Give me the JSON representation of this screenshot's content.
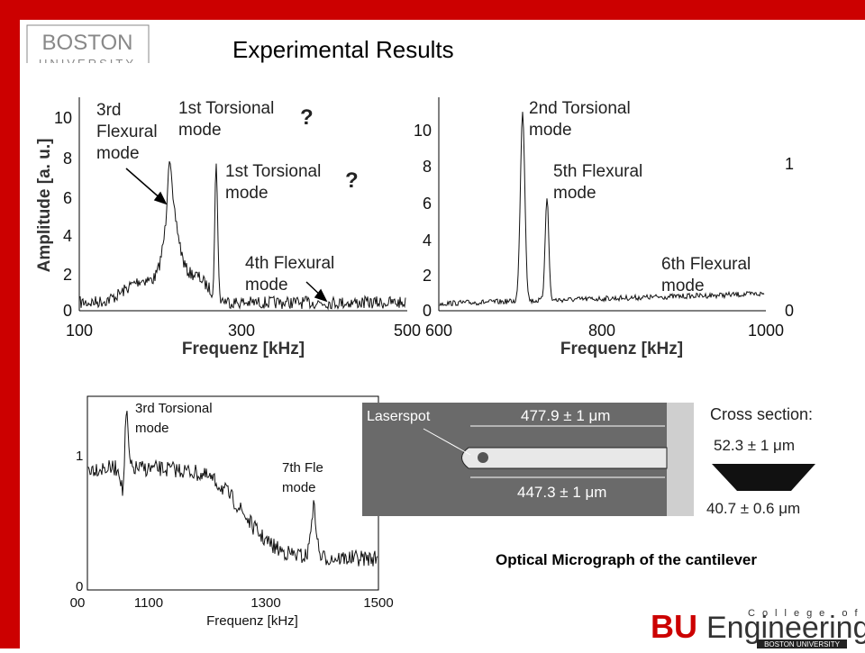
{
  "header": {
    "title": "Experimental Results",
    "logo": [
      "BOSTON",
      "UNIVERSITY"
    ]
  },
  "panels": [
    {
      "y_label": "Amplitude [a. u.]",
      "x_label": "Frequenz [kHz]",
      "xticks": [
        "100",
        "300",
        "500"
      ],
      "yticks": [
        "0",
        "2",
        "4",
        "6",
        "8",
        "10"
      ],
      "annotations": [
        [
          "3rd",
          "Flexural",
          "mode"
        ],
        [
          "1st Torsional",
          "mode"
        ],
        [
          "?"
        ],
        [
          "1st Torsional",
          "mode"
        ],
        [
          "?"
        ],
        [
          "4th Flexural",
          "mode"
        ]
      ]
    },
    {
      "x_label": "Frequenz [kHz]",
      "xticks": [
        "600",
        "800",
        "1000"
      ],
      "yticks": [
        "0",
        "2",
        "4",
        "6",
        "8",
        "10"
      ],
      "y2ticks": [
        "0",
        "1"
      ],
      "annotations": [
        [
          "2nd Torsional",
          "mode"
        ],
        [
          "5th Flexural",
          "mode"
        ],
        [
          "6th Flexural",
          "mode"
        ]
      ]
    },
    {
      "x_label": "Frequenz [kHz]",
      "xticks": [
        "00",
        "1100",
        "1300",
        "1500"
      ],
      "yticks": [
        "0",
        "1"
      ],
      "annotations": [
        [
          "3rd Torsional",
          "mode"
        ],
        [
          "7th Fle",
          "mode"
        ]
      ]
    }
  ],
  "micrograph": {
    "labels": [
      "Laserspot",
      "477.9 ± 1 μm",
      "447.3 ± 1 μm",
      "Cross section:",
      "52.3 ± 1 μm",
      "40.7 ± 0.6 μm"
    ],
    "caption": "Optical Micrograph of the cantilever"
  },
  "footer_logo": {
    "initials": "BU",
    "name": "Engineering",
    "college": "College of",
    "university": "BOSTON UNIVERSITY"
  }
}
